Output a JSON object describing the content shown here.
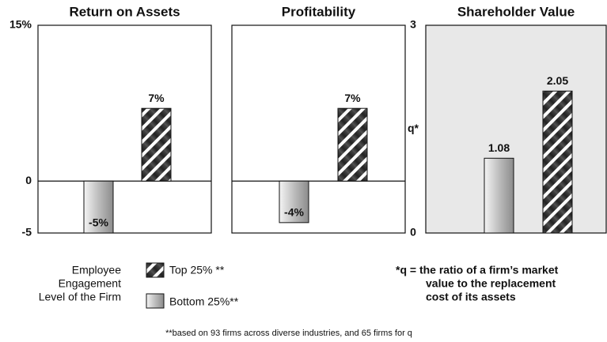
{
  "legend": {
    "title": [
      "Employee",
      "Engagement",
      "Level of the Firm"
    ],
    "items": [
      "Bottom 25%**",
      "Top 25% **"
    ]
  },
  "note": [
    "*q = the ratio of a firm’s market",
    "value to the replacement",
    "cost of its assets"
  ],
  "footnote": "**based on 93 firms across diverse industries, and 65 firms for q",
  "chart_data": [
    {
      "type": "bar",
      "title": "Return on Assets",
      "values": [
        -5,
        7
      ],
      "value_labels": [
        "-5%",
        "7%"
      ],
      "ylim": [
        -5,
        15
      ],
      "yticks": [
        {
          "value": 15,
          "label": "15%"
        },
        0,
        -5
      ],
      "background": "#ffffff"
    },
    {
      "type": "bar",
      "title": "Profitability",
      "values": [
        -4,
        7
      ],
      "value_labels": [
        "-4%",
        "7%"
      ],
      "ylim": [
        -5,
        15
      ],
      "background": "#ffffff"
    },
    {
      "type": "bar",
      "title": "Shareholder Value",
      "ylabel": "q*",
      "values": [
        1.08,
        2.05
      ],
      "ylim": [
        0,
        3
      ],
      "yticks": [
        3,
        0
      ],
      "background": "#e8e8e8"
    }
  ]
}
